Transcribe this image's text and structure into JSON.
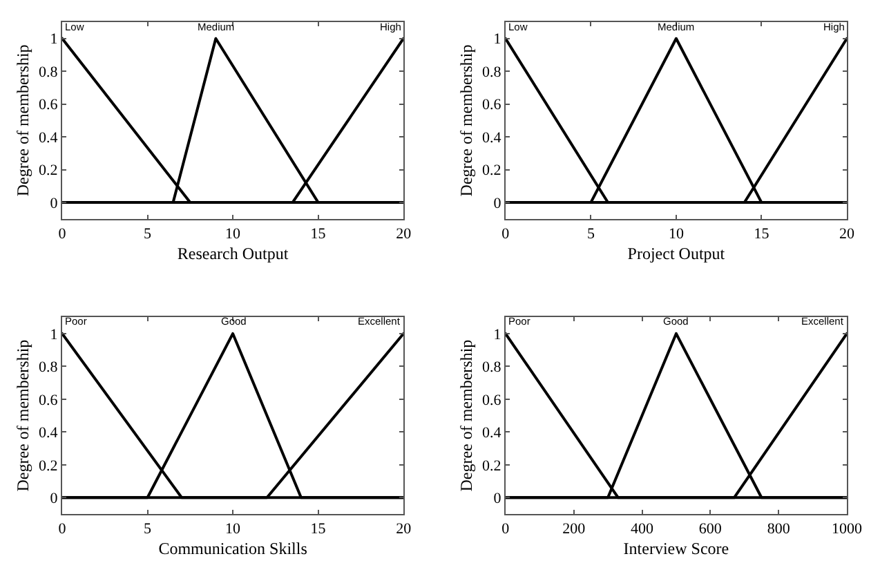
{
  "chart_data": [
    {
      "type": "line",
      "xlabel": "Research Output",
      "ylabel": "Degree of membership",
      "xlim": [
        0,
        20
      ],
      "xticks": [
        0,
        5,
        10,
        15,
        20
      ],
      "ylim": [
        -0.1,
        1.1
      ],
      "yticks": [
        0,
        0.2,
        0.4,
        0.6,
        0.8,
        1
      ],
      "marker": "none",
      "line_style": "solid",
      "series": [
        {
          "name": "Low",
          "color": "#000000",
          "x": [
            0,
            7.5,
            20
          ],
          "values": [
            1,
            0,
            0
          ]
        },
        {
          "name": "Medium",
          "color": "#000000",
          "x": [
            0,
            6.5,
            9,
            15,
            20
          ],
          "values": [
            0,
            0,
            1,
            0,
            0
          ]
        },
        {
          "name": "High",
          "color": "#000000",
          "x": [
            0,
            13.5,
            20
          ],
          "values": [
            0,
            0,
            1
          ]
        }
      ]
    },
    {
      "type": "line",
      "xlabel": "Project Output",
      "ylabel": "Degree of membership",
      "xlim": [
        0,
        20
      ],
      "xticks": [
        0,
        5,
        10,
        15,
        20
      ],
      "ylim": [
        -0.1,
        1.1
      ],
      "yticks": [
        0,
        0.2,
        0.4,
        0.6,
        0.8,
        1
      ],
      "marker": "none",
      "line_style": "solid",
      "series": [
        {
          "name": "Low",
          "color": "#000000",
          "x": [
            0,
            6,
            20
          ],
          "values": [
            1,
            0,
            0
          ]
        },
        {
          "name": "Medium",
          "color": "#000000",
          "x": [
            0,
            5,
            10,
            15,
            20
          ],
          "values": [
            0,
            0,
            1,
            0,
            0
          ]
        },
        {
          "name": "High",
          "color": "#000000",
          "x": [
            0,
            14,
            20
          ],
          "values": [
            0,
            0,
            1
          ]
        }
      ]
    },
    {
      "type": "line",
      "xlabel": "Communication Skills",
      "ylabel": "Degree of membership",
      "xlim": [
        0,
        20
      ],
      "xticks": [
        0,
        5,
        10,
        15,
        20
      ],
      "ylim": [
        -0.1,
        1.1
      ],
      "yticks": [
        0,
        0.2,
        0.4,
        0.6,
        0.8,
        1
      ],
      "marker": "none",
      "line_style": "solid",
      "series": [
        {
          "name": "Poor",
          "color": "#000000",
          "x": [
            0,
            7,
            20
          ],
          "values": [
            1,
            0,
            0
          ]
        },
        {
          "name": "Good",
          "color": "#000000",
          "x": [
            0,
            5,
            10,
            14,
            20
          ],
          "values": [
            0,
            0,
            1,
            0,
            0
          ]
        },
        {
          "name": "Excellent",
          "color": "#000000",
          "x": [
            0,
            12,
            20
          ],
          "values": [
            0,
            0,
            1
          ]
        }
      ]
    },
    {
      "type": "line",
      "xlabel": "Interview Score",
      "ylabel": "Degree of membership",
      "xlim": [
        0,
        1000
      ],
      "xticks": [
        0,
        200,
        400,
        600,
        800,
        1000
      ],
      "ylim": [
        -0.1,
        1.1
      ],
      "yticks": [
        0,
        0.2,
        0.4,
        0.6,
        0.8,
        1
      ],
      "marker": "none",
      "line_style": "solid",
      "series": [
        {
          "name": "Poor",
          "color": "#000000",
          "x": [
            0,
            330,
            1000
          ],
          "values": [
            1,
            0,
            0
          ]
        },
        {
          "name": "Good",
          "color": "#000000",
          "x": [
            0,
            300,
            500,
            750,
            1000
          ],
          "values": [
            0,
            0,
            1,
            0,
            0
          ]
        },
        {
          "name": "Excellent",
          "color": "#000000",
          "x": [
            0,
            670,
            1000
          ],
          "values": [
            0,
            0,
            1
          ]
        }
      ]
    }
  ]
}
